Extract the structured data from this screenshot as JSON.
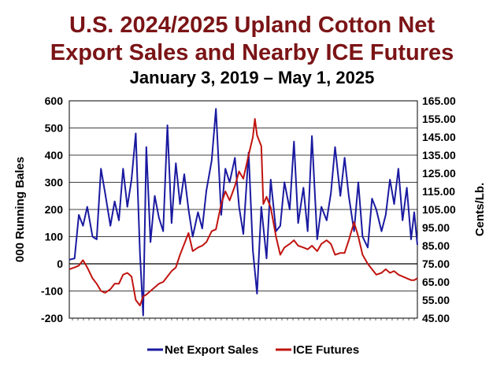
{
  "title_line1": "U.S. 2024/2025 Upland Cotton Net",
  "title_line2": "Export Sales and Nearby ICE Futures",
  "subtitle": "January 3, 2019 – May 1, 2025",
  "colors": {
    "title": "#7b1416",
    "export_sales": "#1a1aa0",
    "ice_futures": "#c0140f",
    "grid": "#000000"
  },
  "chart_data": {
    "type": "line",
    "left_axis": {
      "label": "000 Running Bales",
      "min": -200,
      "max": 600,
      "ticks": [
        600,
        500,
        400,
        300,
        200,
        100,
        0,
        -100,
        -200
      ]
    },
    "right_axis": {
      "label": "Cents/Lb.",
      "min": 45,
      "max": 165,
      "ticks": [
        "165.00",
        "155.00",
        "145.00",
        "135.00",
        "125.00",
        "115.00",
        "105.00",
        "95.00",
        "85.00",
        "75.00",
        "65.00",
        "55.00",
        "45.00"
      ]
    },
    "x_range": [
      "2019-01-03",
      "2025-05-01"
    ],
    "grid": "horizontal",
    "legend_position": "bottom",
    "series": [
      {
        "name": "Net Export Sales",
        "axis": "left",
        "points": [
          [
            "2019-01-03",
            15
          ],
          [
            "2019-02-07",
            20
          ],
          [
            "2019-03-07",
            180
          ],
          [
            "2019-04-04",
            140
          ],
          [
            "2019-05-02",
            210
          ],
          [
            "2019-06-06",
            100
          ],
          [
            "2019-07-04",
            90
          ],
          [
            "2019-08-01",
            350
          ],
          [
            "2019-08-29",
            260
          ],
          [
            "2019-10-03",
            140
          ],
          [
            "2019-10-31",
            230
          ],
          [
            "2019-11-28",
            160
          ],
          [
            "2019-12-26",
            350
          ],
          [
            "2020-01-23",
            210
          ],
          [
            "2020-02-20",
            310
          ],
          [
            "2020-03-19",
            480
          ],
          [
            "2020-04-16",
            40
          ],
          [
            "2020-05-07",
            -190
          ],
          [
            "2020-05-28",
            430
          ],
          [
            "2020-06-25",
            80
          ],
          [
            "2020-07-23",
            250
          ],
          [
            "2020-08-20",
            170
          ],
          [
            "2020-09-17",
            120
          ],
          [
            "2020-10-15",
            510
          ],
          [
            "2020-11-12",
            150
          ],
          [
            "2020-12-10",
            370
          ],
          [
            "2021-01-07",
            220
          ],
          [
            "2021-02-04",
            330
          ],
          [
            "2021-03-04",
            200
          ],
          [
            "2021-04-01",
            100
          ],
          [
            "2021-05-06",
            190
          ],
          [
            "2021-06-03",
            130
          ],
          [
            "2021-07-01",
            270
          ],
          [
            "2021-08-05",
            380
          ],
          [
            "2021-09-02",
            570
          ],
          [
            "2021-10-07",
            180
          ],
          [
            "2021-11-04",
            350
          ],
          [
            "2021-12-02",
            300
          ],
          [
            "2022-01-06",
            390
          ],
          [
            "2022-02-03",
            210
          ],
          [
            "2022-03-03",
            110
          ],
          [
            "2022-04-07",
            410
          ],
          [
            "2022-05-05",
            50
          ],
          [
            "2022-06-02",
            -110
          ],
          [
            "2022-06-30",
            210
          ],
          [
            "2022-08-04",
            20
          ],
          [
            "2022-09-01",
            310
          ],
          [
            "2022-10-06",
            120
          ],
          [
            "2022-11-03",
            140
          ],
          [
            "2022-12-01",
            300
          ],
          [
            "2023-01-05",
            200
          ],
          [
            "2023-02-02",
            450
          ],
          [
            "2023-03-02",
            150
          ],
          [
            "2023-04-06",
            280
          ],
          [
            "2023-05-04",
            120
          ],
          [
            "2023-06-01",
            470
          ],
          [
            "2023-07-06",
            90
          ],
          [
            "2023-08-03",
            210
          ],
          [
            "2023-09-07",
            160
          ],
          [
            "2023-10-05",
            260
          ],
          [
            "2023-11-02",
            430
          ],
          [
            "2023-12-07",
            250
          ],
          [
            "2024-01-04",
            390
          ],
          [
            "2024-02-01",
            250
          ],
          [
            "2024-03-07",
            120
          ],
          [
            "2024-04-04",
            300
          ],
          [
            "2024-05-02",
            100
          ],
          [
            "2024-06-06",
            60
          ],
          [
            "2024-07-04",
            240
          ],
          [
            "2024-08-01",
            200
          ],
          [
            "2024-09-05",
            120
          ],
          [
            "2024-10-03",
            180
          ],
          [
            "2024-10-31",
            310
          ],
          [
            "2024-11-28",
            220
          ],
          [
            "2024-12-26",
            350
          ],
          [
            "2025-01-23",
            160
          ],
          [
            "2025-02-20",
            280
          ],
          [
            "2025-03-20",
            90
          ],
          [
            "2025-04-10",
            190
          ],
          [
            "2025-05-01",
            70
          ]
        ]
      },
      {
        "name": "ICE Futures",
        "axis": "right",
        "points": [
          [
            "2019-01-03",
            72
          ],
          [
            "2019-02-07",
            73
          ],
          [
            "2019-03-07",
            74
          ],
          [
            "2019-04-04",
            77
          ],
          [
            "2019-05-02",
            73
          ],
          [
            "2019-06-06",
            67
          ],
          [
            "2019-07-04",
            64
          ],
          [
            "2019-08-01",
            60
          ],
          [
            "2019-08-29",
            59
          ],
          [
            "2019-10-03",
            61
          ],
          [
            "2019-10-31",
            64
          ],
          [
            "2019-11-28",
            64
          ],
          [
            "2019-12-26",
            69
          ],
          [
            "2020-01-23",
            70
          ],
          [
            "2020-02-20",
            68
          ],
          [
            "2020-03-19",
            55
          ],
          [
            "2020-04-16",
            52
          ],
          [
            "2020-05-07",
            57
          ],
          [
            "2020-05-28",
            58
          ],
          [
            "2020-06-25",
            60
          ],
          [
            "2020-07-23",
            62
          ],
          [
            "2020-08-20",
            64
          ],
          [
            "2020-09-17",
            65
          ],
          [
            "2020-10-15",
            68
          ],
          [
            "2020-11-12",
            71
          ],
          [
            "2020-12-10",
            73
          ],
          [
            "2021-01-07",
            80
          ],
          [
            "2021-02-04",
            86
          ],
          [
            "2021-03-04",
            92
          ],
          [
            "2021-04-01",
            82
          ],
          [
            "2021-05-06",
            84
          ],
          [
            "2021-06-03",
            85
          ],
          [
            "2021-07-01",
            87
          ],
          [
            "2021-08-05",
            93
          ],
          [
            "2021-09-02",
            94
          ],
          [
            "2021-10-07",
            108
          ],
          [
            "2021-11-04",
            115
          ],
          [
            "2021-12-02",
            110
          ],
          [
            "2022-01-06",
            118
          ],
          [
            "2022-02-03",
            126
          ],
          [
            "2022-03-03",
            122
          ],
          [
            "2022-04-07",
            135
          ],
          [
            "2022-05-05",
            145
          ],
          [
            "2022-05-19",
            155
          ],
          [
            "2022-06-02",
            146
          ],
          [
            "2022-06-30",
            140
          ],
          [
            "2022-07-14",
            108
          ],
          [
            "2022-08-04",
            112
          ],
          [
            "2022-09-01",
            106
          ],
          [
            "2022-10-06",
            90
          ],
          [
            "2022-11-03",
            80
          ],
          [
            "2022-12-01",
            84
          ],
          [
            "2023-01-05",
            86
          ],
          [
            "2023-02-02",
            88
          ],
          [
            "2023-03-02",
            85
          ],
          [
            "2023-04-06",
            84
          ],
          [
            "2023-05-04",
            83
          ],
          [
            "2023-06-01",
            85
          ],
          [
            "2023-07-06",
            82
          ],
          [
            "2023-08-03",
            86
          ],
          [
            "2023-09-07",
            88
          ],
          [
            "2023-10-05",
            86
          ],
          [
            "2023-11-02",
            80
          ],
          [
            "2023-12-07",
            81
          ],
          [
            "2024-01-04",
            81
          ],
          [
            "2024-02-01",
            88
          ],
          [
            "2024-03-07",
            98
          ],
          [
            "2024-04-04",
            90
          ],
          [
            "2024-05-02",
            80
          ],
          [
            "2024-06-06",
            75
          ],
          [
            "2024-07-04",
            72
          ],
          [
            "2024-08-01",
            69
          ],
          [
            "2024-09-05",
            70
          ],
          [
            "2024-10-03",
            72
          ],
          [
            "2024-10-31",
            70
          ],
          [
            "2024-11-28",
            71
          ],
          [
            "2024-12-26",
            69
          ],
          [
            "2025-01-23",
            68
          ],
          [
            "2025-02-20",
            67
          ],
          [
            "2025-03-20",
            66
          ],
          [
            "2025-04-10",
            66
          ],
          [
            "2025-05-01",
            67
          ]
        ]
      }
    ]
  }
}
